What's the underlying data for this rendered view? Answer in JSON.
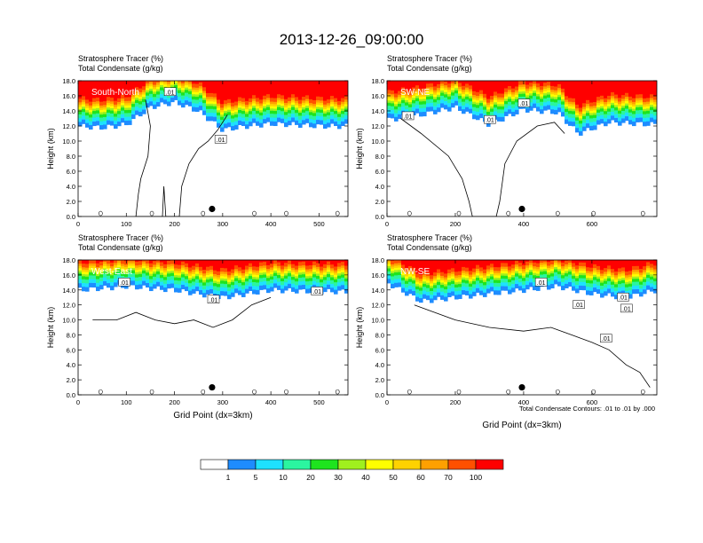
{
  "title": "2013-12-26_09:00:00",
  "footnote": "Total Condensate Contours: .01 to .01 by .000",
  "colors": {
    "levels": [
      "#ffffff",
      "#1e8cff",
      "#1ee1ff",
      "#2bf5a0",
      "#1ee41e",
      "#a0f01e",
      "#ffff00",
      "#ffd200",
      "#ffa000",
      "#ff5000",
      "#ff0000"
    ],
    "contour": "#000000",
    "marker": "#000000"
  },
  "colorbar": {
    "labels": [
      "1",
      "5",
      "10",
      "20",
      "30",
      "40",
      "50",
      "60",
      "70",
      "100"
    ]
  },
  "chart_data": [
    {
      "type": "heatmap",
      "section": "South-North",
      "title_lines": [
        "Stratosphere Tracer   (%)",
        "Total Condensate   (g/kg)"
      ],
      "ylabel": "Height (km)",
      "xlabel": "",
      "xlim": [
        0,
        560
      ],
      "ylim": [
        0,
        18
      ],
      "xticks": [
        0,
        100,
        200,
        300,
        400,
        500
      ],
      "yticks": [
        "0.0",
        "2.0",
        "4.0",
        "6.0",
        "8.0",
        "10.0",
        "12.0",
        "14.0",
        "16.0",
        "18.0"
      ],
      "tracer_band": [
        [
          0,
          12.0
        ],
        [
          50,
          11.8
        ],
        [
          100,
          12.2
        ],
        [
          150,
          14.5
        ],
        [
          200,
          15.2
        ],
        [
          250,
          14.0
        ],
        [
          300,
          11.5
        ],
        [
          350,
          12.0
        ],
        [
          400,
          12.3
        ],
        [
          450,
          12.2
        ],
        [
          500,
          12.0
        ],
        [
          560,
          12.0
        ]
      ],
      "contour_labels": [
        ".01",
        ".01"
      ],
      "contour_label_pos": [
        [
          190,
          16.5
        ],
        [
          295,
          10.2
        ]
      ],
      "marker": [
        278,
        1.0
      ],
      "cloud_outline": [
        [
          140,
          15.5
        ],
        [
          150,
          12
        ],
        [
          145,
          8
        ],
        [
          130,
          5
        ],
        [
          125,
          3
        ],
        [
          120,
          0
        ],
        [
          175,
          0
        ],
        [
          178,
          4
        ],
        [
          182,
          0
        ],
        [
          210,
          0
        ],
        [
          215,
          4
        ],
        [
          230,
          7
        ],
        [
          250,
          9
        ],
        [
          270,
          10
        ],
        [
          290,
          11.5
        ],
        [
          300,
          12.5
        ],
        [
          310,
          13.5
        ]
      ]
    },
    {
      "type": "heatmap",
      "section": "SW-NE",
      "title_lines": [
        "Stratosphere Tracer   (%)",
        "Total Condensate   (g/kg)"
      ],
      "ylabel": "Height (km)",
      "xlabel": "",
      "xlim": [
        0,
        790
      ],
      "ylim": [
        0,
        18
      ],
      "xticks": [
        0,
        200,
        400,
        600
      ],
      "yticks": [
        "0.0",
        "2.0",
        "4.0",
        "6.0",
        "8.0",
        "10.0",
        "12.0",
        "14.0",
        "16.0",
        "18.0"
      ],
      "tracer_band": [
        [
          0,
          12.8
        ],
        [
          100,
          13.5
        ],
        [
          200,
          14.5
        ],
        [
          300,
          12.2
        ],
        [
          400,
          14.2
        ],
        [
          500,
          13.8
        ],
        [
          560,
          11.0
        ],
        [
          650,
          12.5
        ],
        [
          790,
          12.2
        ]
      ],
      "contour_labels": [
        ".01",
        ".01",
        ".01"
      ],
      "contour_label_pos": [
        [
          60,
          13.3
        ],
        [
          300,
          12.8
        ],
        [
          400,
          15.0
        ]
      ],
      "marker": [
        395,
        1.0
      ],
      "cloud_outline": [
        [
          40,
          13
        ],
        [
          100,
          11
        ],
        [
          180,
          8
        ],
        [
          220,
          5
        ],
        [
          240,
          2
        ],
        [
          250,
          0
        ],
        [
          320,
          0
        ],
        [
          330,
          2
        ],
        [
          345,
          7
        ],
        [
          380,
          10
        ],
        [
          440,
          12
        ],
        [
          490,
          12.5
        ],
        [
          520,
          11
        ]
      ]
    },
    {
      "type": "heatmap",
      "section": "West-East",
      "title_lines": [
        "Stratosphere Tracer   (%)",
        "Total Condensate   (g/kg)"
      ],
      "ylabel": "Height (km)",
      "xlabel": "Grid Point (dx=3km)",
      "xlim": [
        0,
        560
      ],
      "ylim": [
        0,
        18
      ],
      "xticks": [
        0,
        100,
        200,
        300,
        400,
        500
      ],
      "yticks": [
        "0.0",
        "2.0",
        "4.0",
        "6.0",
        "8.0",
        "10.0",
        "12.0",
        "14.0",
        "16.0",
        "18.0"
      ],
      "tracer_band": [
        [
          0,
          14.0
        ],
        [
          100,
          14.5
        ],
        [
          200,
          14.0
        ],
        [
          300,
          13.0
        ],
        [
          400,
          14.0
        ],
        [
          500,
          13.8
        ],
        [
          560,
          13.8
        ]
      ],
      "contour_labels": [
        ".01",
        ".01",
        ".01"
      ],
      "contour_label_pos": [
        [
          95,
          15.0
        ],
        [
          280,
          12.7
        ],
        [
          495,
          13.8
        ]
      ],
      "marker": [
        278,
        1.0
      ],
      "cloud_outline": [
        [
          30,
          10
        ],
        [
          80,
          10
        ],
        [
          120,
          11
        ],
        [
          160,
          10
        ],
        [
          200,
          9.5
        ],
        [
          240,
          10
        ],
        [
          280,
          9
        ],
        [
          320,
          10
        ],
        [
          360,
          12
        ],
        [
          400,
          13
        ]
      ]
    },
    {
      "type": "heatmap",
      "section": "NW-SE",
      "title_lines": [
        "Stratosphere Tracer   (%)",
        "Total Condensate   (g/kg)"
      ],
      "ylabel": "Height (km)",
      "xlabel": "Grid Point (dx=3km)",
      "xlim": [
        0,
        790
      ],
      "ylim": [
        0,
        18
      ],
      "xticks": [
        0,
        200,
        400,
        600
      ],
      "yticks": [
        "0.0",
        "2.0",
        "4.0",
        "6.0",
        "8.0",
        "10.0",
        "12.0",
        "14.0",
        "16.0",
        "18.0"
      ],
      "tracer_band": [
        [
          0,
          15.0
        ],
        [
          100,
          12.5
        ],
        [
          200,
          13.0
        ],
        [
          300,
          13.5
        ],
        [
          400,
          14.0
        ],
        [
          500,
          14.5
        ],
        [
          600,
          13.5
        ],
        [
          700,
          13.0
        ],
        [
          790,
          14.0
        ]
      ],
      "contour_labels": [
        ".01",
        ".01",
        ".01",
        ".01",
        ".01"
      ],
      "contour_label_pos": [
        [
          450,
          15.0
        ],
        [
          560,
          12.0
        ],
        [
          690,
          13.0
        ],
        [
          700,
          11.5
        ],
        [
          640,
          7.5
        ]
      ],
      "marker": [
        395,
        1.0
      ],
      "cloud_outline": [
        [
          80,
          12
        ],
        [
          200,
          10
        ],
        [
          300,
          9
        ],
        [
          400,
          8.5
        ],
        [
          480,
          9
        ],
        [
          540,
          8
        ],
        [
          600,
          7
        ],
        [
          650,
          6
        ],
        [
          700,
          4
        ],
        [
          740,
          3
        ],
        [
          770,
          1
        ]
      ]
    }
  ]
}
